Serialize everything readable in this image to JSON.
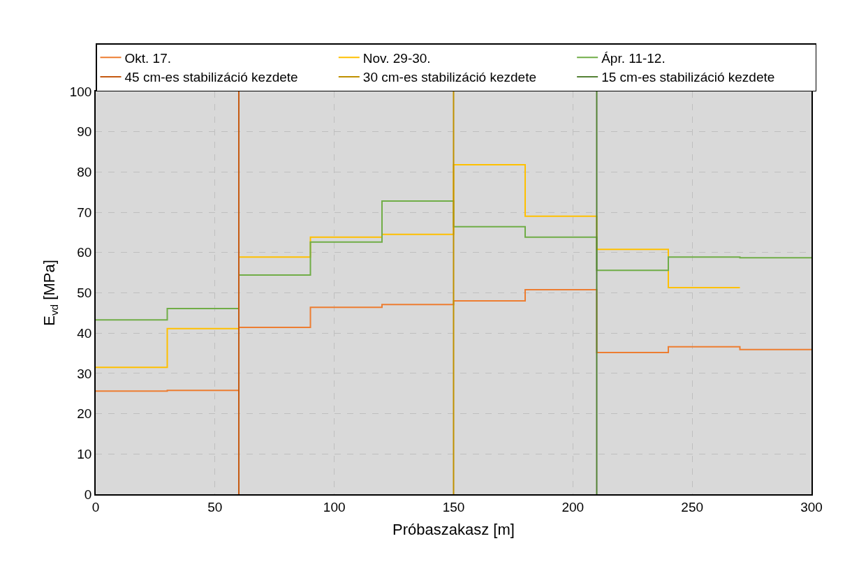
{
  "chart_data": {
    "type": "step",
    "xlabel": "Próbaszakasz [m]",
    "ylabel": "E$_{vd}$ [MPa]",
    "xlim": [
      0,
      300
    ],
    "xticks": [
      0,
      50,
      100,
      150,
      200,
      250,
      300
    ],
    "ylim": [
      0,
      100
    ],
    "yticks": [
      0,
      10,
      20,
      30,
      40,
      50,
      60,
      70,
      80,
      90,
      100
    ],
    "grid": true,
    "legend": "top",
    "series": [
      {
        "name": "Okt. 17.",
        "color": "#ed7d31",
        "x": [
          0,
          30,
          60,
          90,
          120,
          150,
          180,
          210,
          240,
          270,
          300
        ],
        "values": [
          25.6,
          25.8,
          41.4,
          46.4,
          47.1,
          48.0,
          50.8,
          35.2,
          36.6,
          35.9,
          35.9
        ]
      },
      {
        "name": "Nov. 29-30.",
        "color": "#ffc000",
        "x": [
          0,
          30,
          60,
          90,
          120,
          150,
          180,
          210,
          240,
          270
        ],
        "values": [
          31.5,
          41.1,
          58.9,
          63.8,
          64.5,
          81.8,
          69.0,
          60.8,
          51.3,
          51.3
        ]
      },
      {
        "name": "Ápr. 11-12.",
        "color": "#70ad47",
        "x": [
          0,
          30,
          60,
          90,
          120,
          150,
          180,
          210,
          240,
          270,
          300
        ],
        "values": [
          43.3,
          46.1,
          54.4,
          62.6,
          72.8,
          66.4,
          63.8,
          55.6,
          58.9,
          58.7,
          58.7
        ]
      }
    ],
    "ref_lines": [
      {
        "axis": "x",
        "value": 60,
        "label": "45 cm-es stabilizáció kezdete",
        "color": "#c55a11"
      },
      {
        "axis": "x",
        "value": 150,
        "label": "30 cm-es stabilizáció kezdete",
        "color": "#bf9000"
      },
      {
        "axis": "x",
        "value": 210,
        "label": "15 cm-es stabilizáció kezdete",
        "color": "#548235"
      }
    ]
  }
}
